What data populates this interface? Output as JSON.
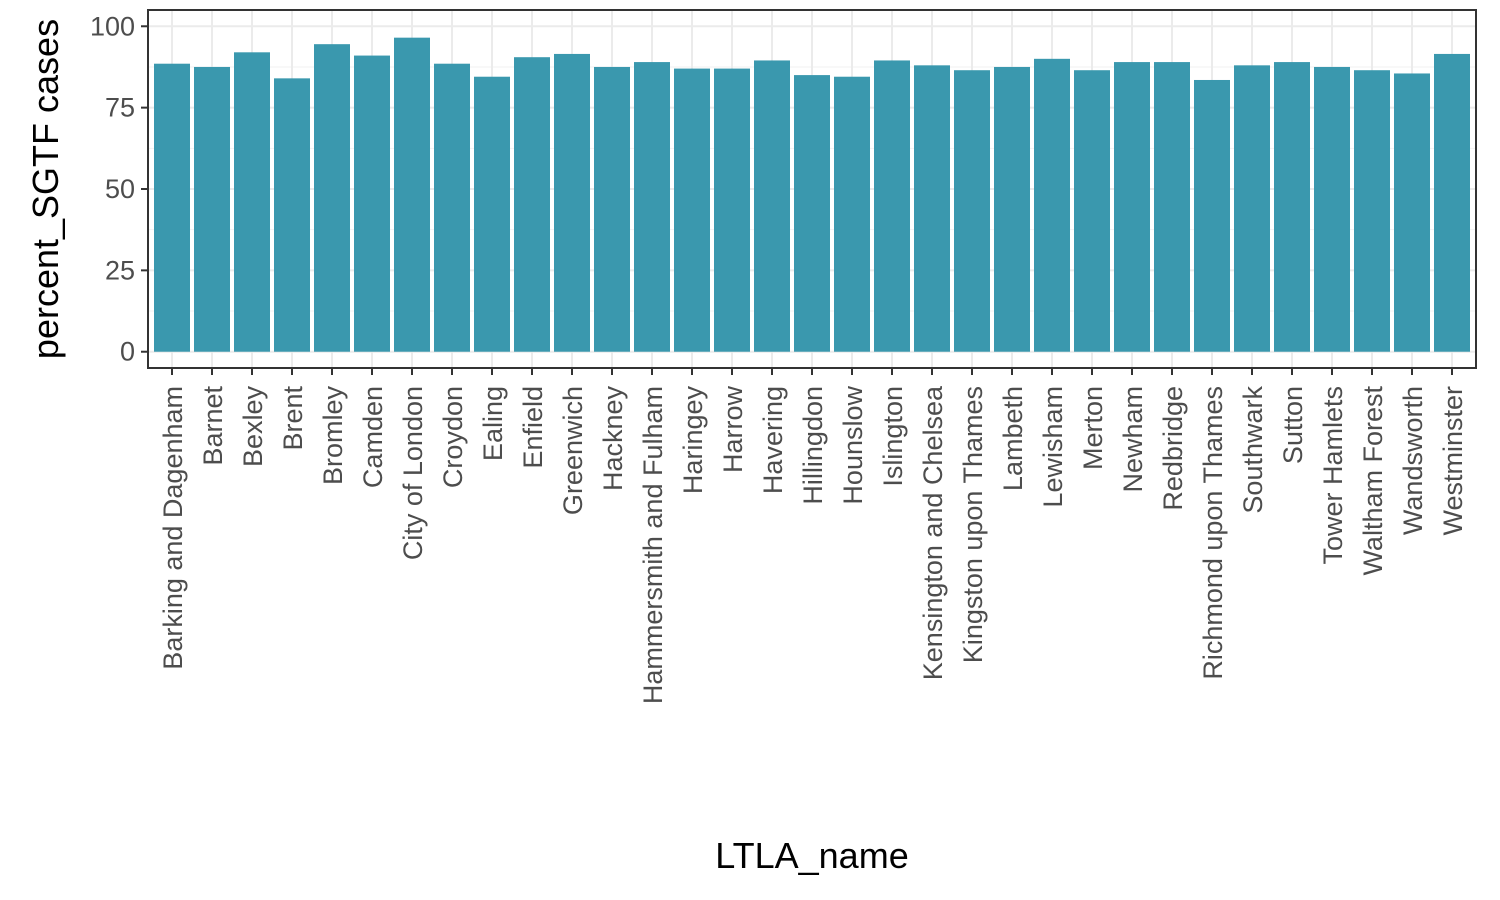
{
  "chart_data": {
    "type": "bar",
    "xlabel": "LTLA_name",
    "ylabel": "percent_SGTF cases",
    "ylim": [
      0,
      100
    ],
    "yticks": [
      0,
      25,
      50,
      75,
      100
    ],
    "grid": true,
    "bar_color": "#3a98ae",
    "categories": [
      "Barking and Dagenham",
      "Barnet",
      "Bexley",
      "Brent",
      "Bromley",
      "Camden",
      "City of London",
      "Croydon",
      "Ealing",
      "Enfield",
      "Greenwich",
      "Hackney",
      "Hammersmith and Fulham",
      "Haringey",
      "Harrow",
      "Havering",
      "Hillingdon",
      "Hounslow",
      "Islington",
      "Kensington and Chelsea",
      "Kingston upon Thames",
      "Lambeth",
      "Lewisham",
      "Merton",
      "Newham",
      "Redbridge",
      "Richmond upon Thames",
      "Southwark",
      "Sutton",
      "Tower Hamlets",
      "Waltham Forest",
      "Wandsworth",
      "Westminster"
    ],
    "values": [
      88.5,
      87.5,
      92,
      84,
      94.5,
      91,
      96.5,
      88.5,
      84.5,
      90.5,
      91.5,
      87.5,
      89,
      87,
      87,
      89.5,
      85,
      84.5,
      89.5,
      88,
      86.5,
      87.5,
      90,
      86.5,
      89,
      89,
      83.5,
      88,
      89,
      87.5,
      86.5,
      85.5,
      91.5
    ]
  }
}
